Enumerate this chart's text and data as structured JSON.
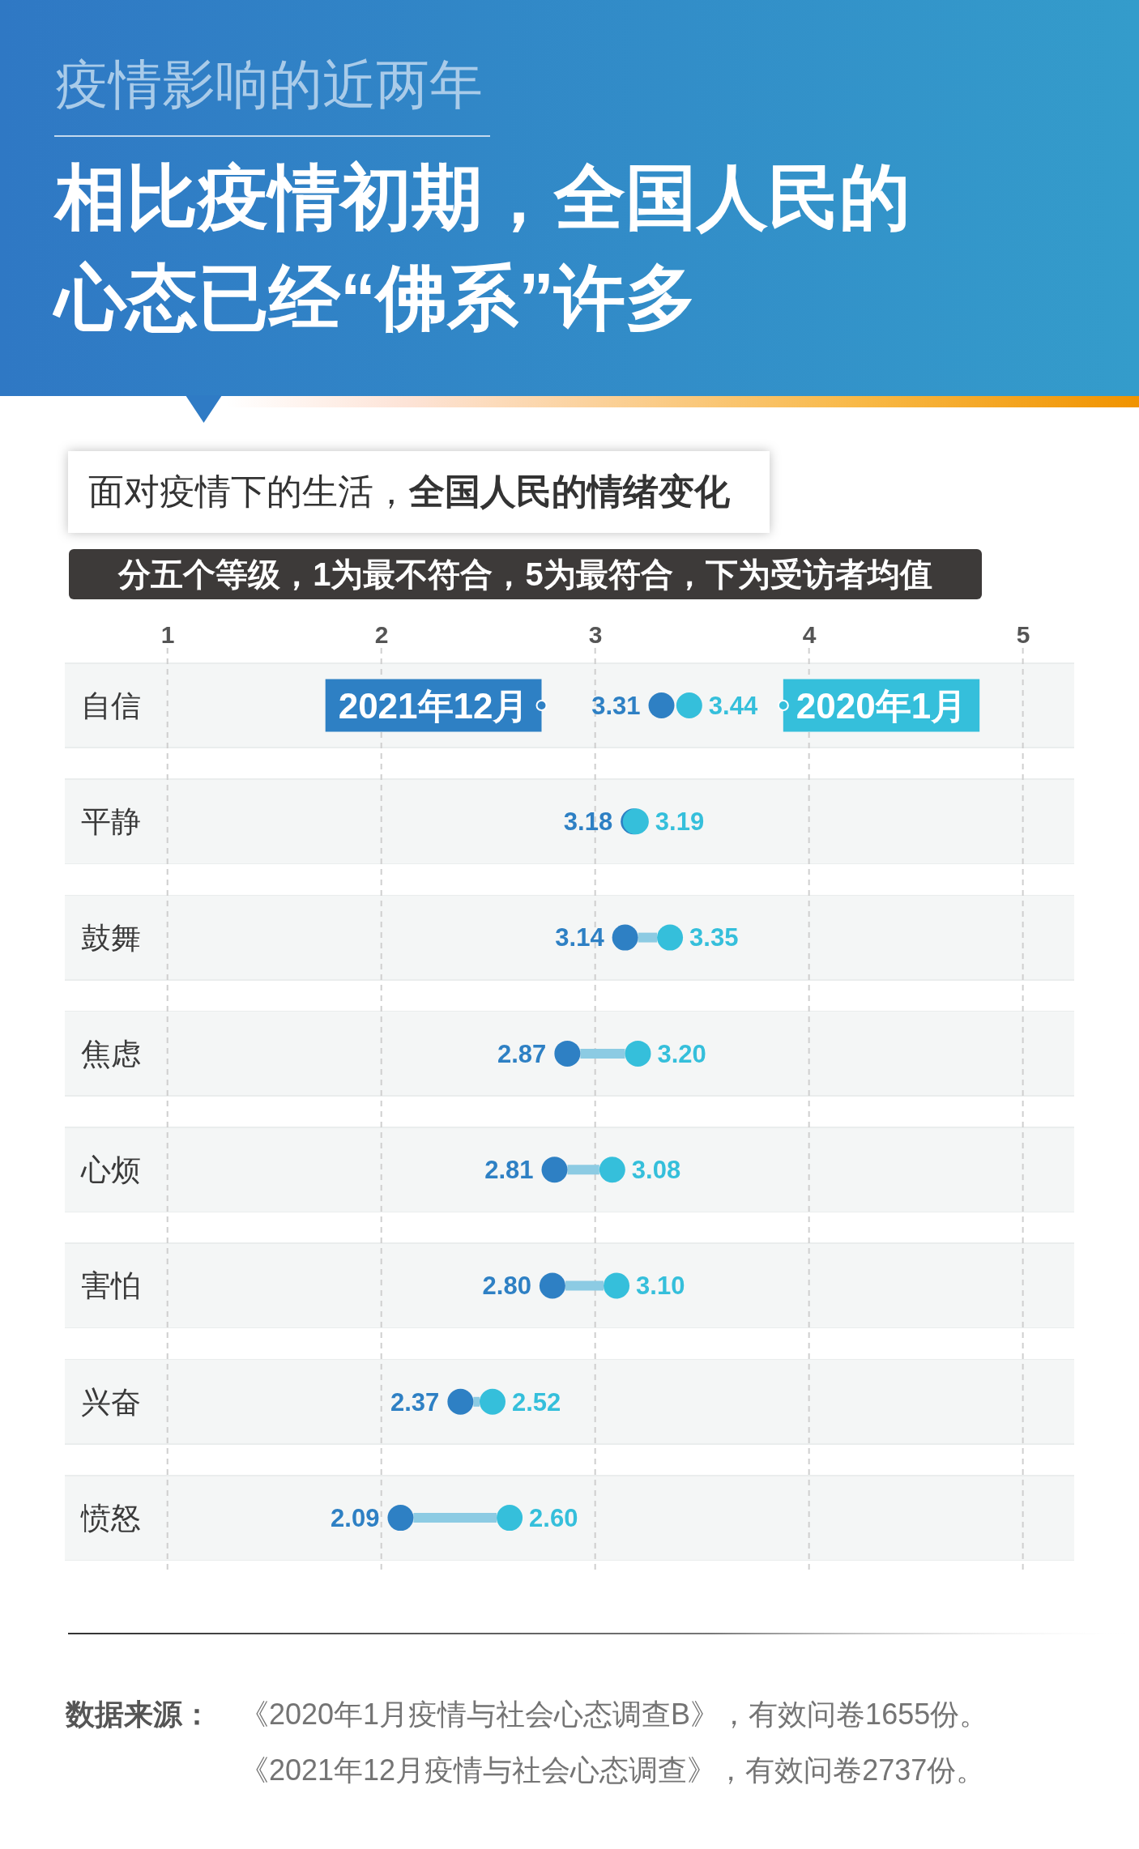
{
  "chart_data": {
    "type": "scatter",
    "orientation": "horizontal",
    "title": "相比疫情初期，全国人民的心态已经“佛系”许多",
    "subtitle": "疫情影响的近两年",
    "annotations": [
      "面对疫情下的生活，",
      "全国人民的情绪变化",
      "分五个等级，1为最不符合，5为最符合，下为受访者均值",
      "数据来源：",
      "《2020年1月疫情与社会心态调查B》，有效问卷1655份。",
      "《2021年12月疫情与社会心态调查》，有效问卷2737份。"
    ],
    "categories": [
      "自信",
      "平静",
      "鼓舞",
      "焦虑",
      "心烦",
      "害怕",
      "兴奋",
      "愤怒"
    ],
    "series": [
      {
        "name": "2021年12月",
        "color": "#2e80c4",
        "values": [
          3.31,
          3.18,
          3.14,
          2.87,
          2.81,
          2.8,
          2.37,
          2.09
        ],
        "value_labels": [
          "3.31",
          "3.18",
          "3.14",
          "2.87",
          "2.81",
          "2.80",
          "2.37",
          "2.09"
        ]
      },
      {
        "name": "2020年1月",
        "color": "#35bfdb",
        "values": [
          3.44,
          3.19,
          3.35,
          3.2,
          3.08,
          3.1,
          2.52,
          2.6
        ],
        "value_labels": [
          "3.44",
          "3.19",
          "3.35",
          "3.20",
          "3.08",
          "3.10",
          "2.52",
          "2.60"
        ]
      }
    ],
    "xlim": [
      0.52,
      5.24
    ],
    "xticks": [
      1,
      2,
      3,
      4,
      5
    ],
    "grid": "x",
    "marker": "circle"
  }
}
